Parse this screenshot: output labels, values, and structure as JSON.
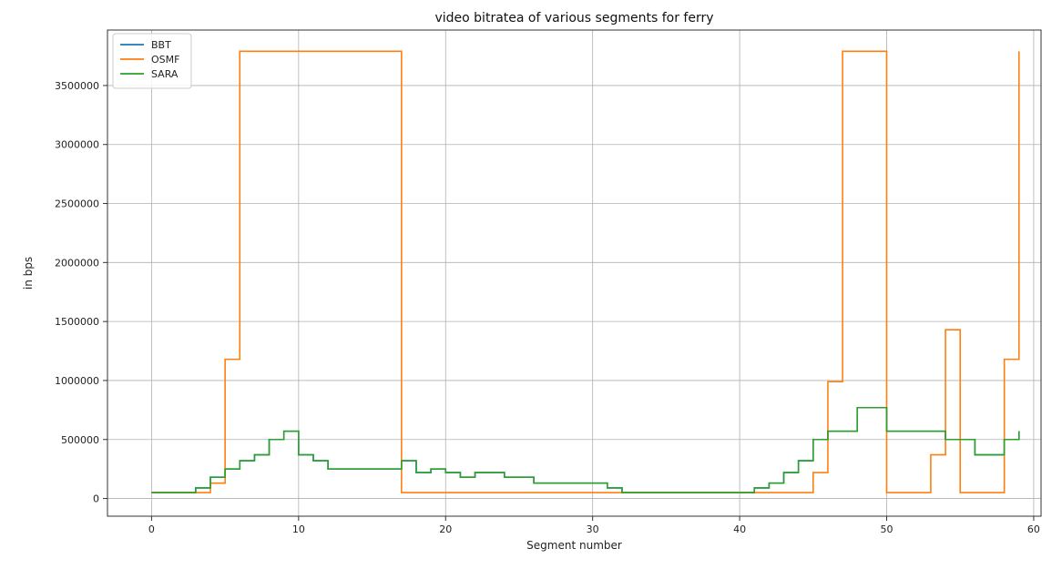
{
  "chart_data": {
    "type": "line",
    "step": true,
    "title": "video bitratea of various segments for ferry",
    "xlabel": "Segment number",
    "ylabel": "in bps",
    "xlim": [
      -3,
      60.5
    ],
    "ylim": [
      -150000,
      3970000
    ],
    "xticks": [
      0,
      10,
      20,
      30,
      40,
      50,
      60
    ],
    "yticks": [
      0,
      500000,
      1000000,
      1500000,
      2000000,
      2500000,
      3000000,
      3500000
    ],
    "grid": true,
    "legend_position": "top-left",
    "series": [
      {
        "name": "BBT",
        "color": "#1f77b4",
        "values": [
          50000,
          50000,
          50000,
          90000,
          180000,
          250000,
          320000,
          370000,
          500000,
          570000,
          370000,
          320000,
          250000,
          250000,
          250000,
          250000,
          250000,
          320000,
          220000,
          250000,
          220000,
          180000,
          220000,
          220000,
          180000,
          180000,
          130000,
          130000,
          130000,
          130000,
          130000,
          90000,
          50000,
          50000,
          50000,
          50000,
          50000,
          50000,
          50000,
          50000,
          50000,
          90000,
          130000,
          220000,
          320000,
          500000,
          570000,
          570000,
          770000,
          770000,
          570000,
          570000,
          570000,
          570000,
          500000,
          500000,
          370000,
          370000,
          500000,
          570000
        ]
      },
      {
        "name": "OSMF",
        "color": "#ff7f0e",
        "values": [
          50000,
          50000,
          50000,
          50000,
          130000,
          1180000,
          3790000,
          3790000,
          3790000,
          3790000,
          3790000,
          3790000,
          3790000,
          3790000,
          3790000,
          3790000,
          3790000,
          50000,
          50000,
          50000,
          50000,
          50000,
          50000,
          50000,
          50000,
          50000,
          50000,
          50000,
          50000,
          50000,
          50000,
          50000,
          50000,
          50000,
          50000,
          50000,
          50000,
          50000,
          50000,
          50000,
          50000,
          50000,
          50000,
          50000,
          50000,
          220000,
          990000,
          3790000,
          3790000,
          3790000,
          50000,
          50000,
          50000,
          370000,
          1430000,
          50000,
          50000,
          50000,
          1180000,
          3790000
        ]
      },
      {
        "name": "SARA",
        "color": "#2ca02c",
        "values": [
          50000,
          50000,
          50000,
          90000,
          180000,
          250000,
          320000,
          370000,
          500000,
          570000,
          370000,
          320000,
          250000,
          250000,
          250000,
          250000,
          250000,
          320000,
          220000,
          250000,
          220000,
          180000,
          220000,
          220000,
          180000,
          180000,
          130000,
          130000,
          130000,
          130000,
          130000,
          90000,
          50000,
          50000,
          50000,
          50000,
          50000,
          50000,
          50000,
          50000,
          50000,
          90000,
          130000,
          220000,
          320000,
          500000,
          570000,
          570000,
          770000,
          770000,
          570000,
          570000,
          570000,
          570000,
          500000,
          500000,
          370000,
          370000,
          500000,
          570000
        ]
      }
    ]
  }
}
